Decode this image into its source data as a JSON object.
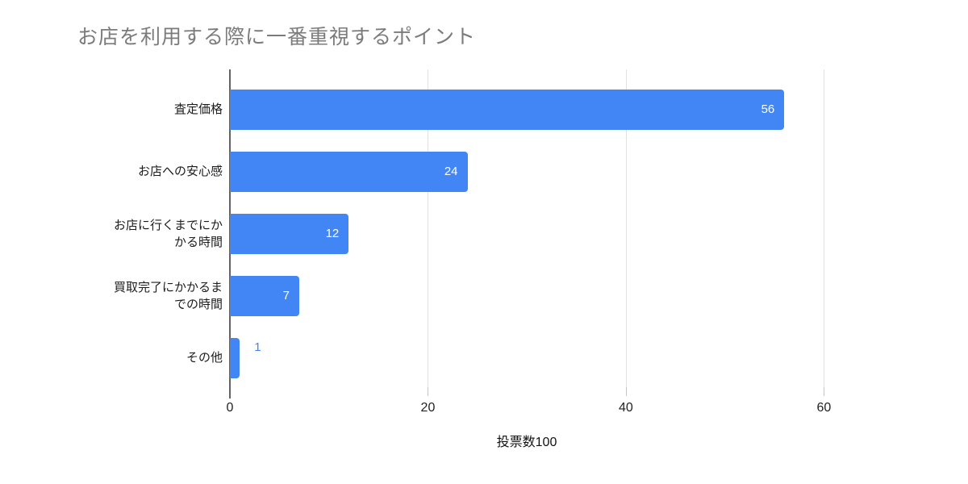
{
  "chart_data": {
    "type": "bar",
    "orientation": "horizontal",
    "title": "お店を利用する際に一番重視するポイント",
    "categories": [
      "査定価格",
      "お店への安心感",
      "お店に行くまでにか\nかる時間",
      "買取完了にかかるま\nでの時間",
      "その他"
    ],
    "values": [
      56,
      24,
      12,
      7,
      1
    ],
    "xlabel": "投票数100",
    "ylabel": "",
    "x_ticks": [
      0,
      20,
      40,
      60
    ],
    "xlim": [
      0,
      66
    ],
    "grid": true,
    "legend": "none",
    "bar_color": "#4285f4",
    "value_label_inside_color": "#ffffff",
    "value_label_outside_color": "#4285f4",
    "title_color": "#7b7b7b",
    "axis_line_color": "#636363",
    "gridline_color": "#e2e2e2"
  }
}
